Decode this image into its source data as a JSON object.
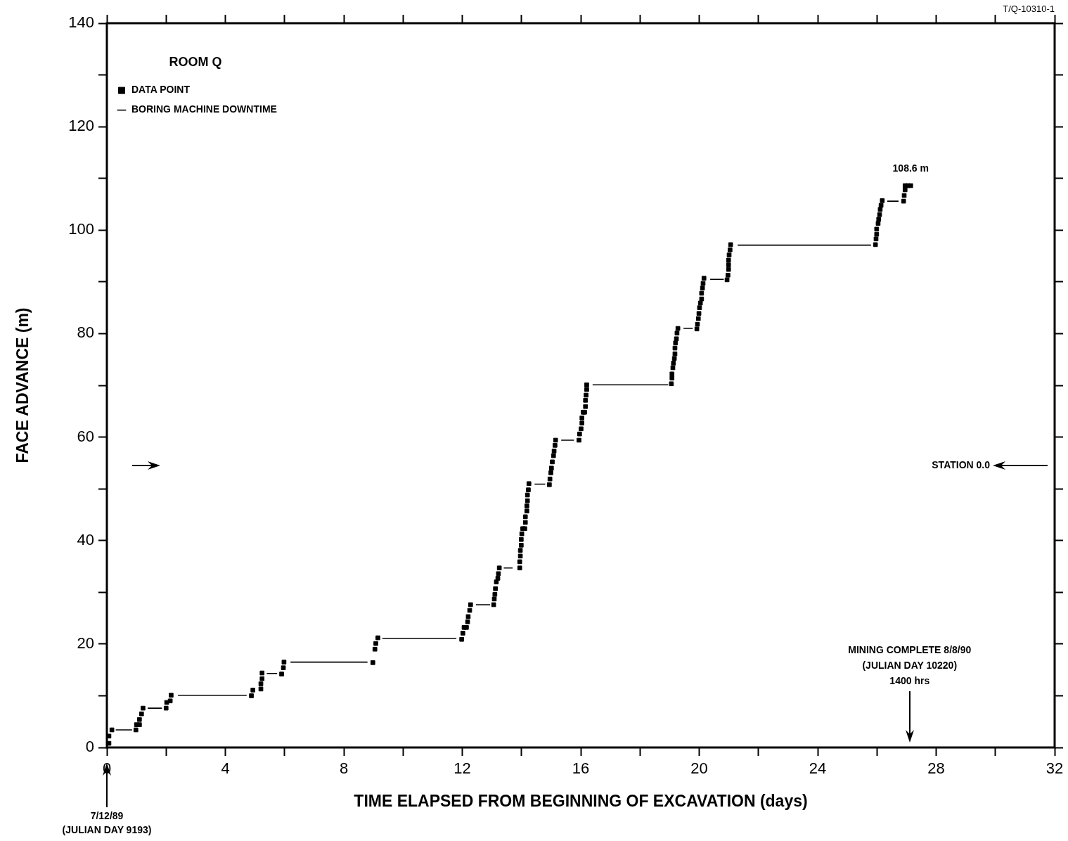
{
  "chart_data": {
    "type": "scatter",
    "xlabel": "TIME ELAPSED FROM BEGINNING OF EXCAVATION (days)",
    "ylabel": "FACE ADVANCE (m)",
    "xlim": [
      0,
      32
    ],
    "ylim": [
      0,
      140
    ],
    "xticks": [
      0,
      {
        "value": 2,
        "label": null
      },
      4,
      {
        "value": 6,
        "label": null
      },
      8,
      {
        "value": 10,
        "label": null
      },
      12,
      {
        "value": 14,
        "label": null
      },
      16,
      {
        "value": 18,
        "label": null
      },
      20,
      {
        "value": 22,
        "label": null
      },
      24,
      {
        "value": 26,
        "label": null
      },
      28,
      {
        "value": 30,
        "label": null
      },
      32
    ],
    "yticks": [
      0,
      {
        "value": 10,
        "label": null
      },
      20,
      {
        "value": 30,
        "label": null
      },
      40,
      {
        "value": 50,
        "label": null
      },
      60,
      {
        "value": 70,
        "label": null
      },
      80,
      {
        "value": 90,
        "label": null
      },
      100,
      {
        "value": 110,
        "label": null
      },
      120,
      {
        "value": 130,
        "label": null
      },
      140
    ],
    "legend": "top left",
    "legend_title": "ROOM Q",
    "series": [
      {
        "name": "DATA POINT",
        "marker": "square",
        "color": "#000000",
        "x": [
          0.07,
          0.07,
          0.17,
          0.98,
          1.0,
          1.1,
          1.1,
          1.17,
          1.22,
          2.0,
          2.02,
          2.14,
          2.17,
          4.88,
          4.93,
          5.2,
          5.2,
          5.24,
          5.24,
          5.9,
          5.96,
          5.98,
          8.98,
          9.05,
          9.08,
          9.15,
          11.98,
          12.02,
          12.06,
          12.14,
          12.18,
          12.2,
          12.25,
          12.28,
          13.06,
          13.08,
          13.1,
          13.12,
          13.15,
          13.2,
          13.22,
          13.25,
          13.94,
          13.94,
          13.96,
          13.96,
          13.99,
          13.99,
          14.01,
          14.04,
          14.11,
          14.13,
          14.13,
          14.18,
          14.18,
          14.2,
          14.2,
          14.23,
          14.25,
          14.94,
          14.96,
          14.99,
          15.01,
          15.04,
          15.08,
          15.1,
          15.13,
          15.15,
          15.94,
          15.96,
          16.01,
          16.04,
          16.04,
          16.08,
          16.13,
          16.16,
          16.16,
          16.18,
          16.2,
          16.2,
          19.06,
          19.08,
          19.08,
          19.11,
          19.13,
          19.16,
          19.18,
          19.18,
          19.2,
          19.23,
          19.25,
          19.28,
          19.92,
          19.94,
          19.97,
          19.99,
          20.01,
          20.04,
          20.08,
          20.08,
          20.11,
          20.13,
          20.16,
          20.94,
          20.97,
          20.99,
          20.99,
          20.99,
          21.01,
          21.04,
          21.06,
          25.95,
          25.97,
          25.99,
          25.99,
          26.04,
          26.06,
          26.09,
          26.11,
          26.14,
          26.18,
          26.9,
          26.92,
          26.95,
          26.95,
          27.04,
          27.14
        ],
        "values": [
          0.8,
          2.2,
          3.4,
          3.4,
          4.4,
          4.4,
          5.4,
          6.5,
          7.6,
          7.6,
          8.7,
          9.0,
          10.1,
          10.0,
          11.1,
          11.3,
          12.3,
          13.3,
          14.4,
          14.2,
          15.4,
          16.5,
          16.4,
          19.0,
          20.1,
          21.2,
          20.9,
          22.1,
          23.2,
          23.2,
          24.3,
          25.3,
          26.5,
          27.6,
          27.6,
          28.7,
          29.6,
          30.7,
          32.0,
          32.7,
          33.6,
          34.7,
          34.7,
          35.9,
          37.0,
          38.1,
          39.1,
          40.2,
          41.3,
          42.3,
          42.3,
          43.5,
          44.6,
          45.7,
          46.7,
          47.7,
          48.8,
          49.8,
          51.0,
          50.8,
          51.9,
          53.1,
          54.0,
          55.2,
          56.4,
          57.3,
          58.4,
          59.4,
          59.4,
          60.6,
          61.6,
          62.7,
          63.7,
          64.8,
          64.8,
          65.9,
          67.1,
          68.1,
          69.2,
          70.1,
          70.3,
          71.4,
          72.2,
          73.4,
          74.3,
          75.2,
          76.1,
          77.2,
          78.2,
          79.0,
          80.1,
          81.0,
          80.9,
          81.8,
          82.9,
          83.9,
          85.0,
          85.9,
          86.7,
          87.8,
          88.8,
          89.7,
          90.7,
          90.4,
          91.3,
          92.4,
          93.3,
          94.2,
          95.2,
          96.2,
          97.2,
          97.2,
          98.3,
          99.2,
          100.2,
          101.3,
          102.1,
          103.0,
          104.0,
          104.8,
          105.7,
          105.6,
          106.7,
          107.8,
          108.6,
          108.6,
          108.6
        ]
      },
      {
        "name": "BORING MACHINE DOWNTIME",
        "type": "line",
        "marker": "none",
        "color": "#000000",
        "x": [
          0.3,
          0.85,
          null,
          1.38,
          1.86,
          null,
          2.4,
          4.72,
          null,
          5.4,
          5.75,
          null,
          6.2,
          8.8,
          null,
          9.3,
          11.8,
          null,
          12.46,
          12.94,
          null,
          13.4,
          13.7,
          null,
          14.44,
          14.8,
          null,
          15.34,
          15.77,
          null,
          16.4,
          18.95,
          null,
          19.47,
          19.78,
          null,
          20.37,
          20.83,
          null,
          21.3,
          25.8,
          null,
          26.35,
          26.73
        ],
        "values": [
          3.4,
          3.4,
          null,
          7.6,
          7.6,
          null,
          10.1,
          10.1,
          null,
          14.3,
          14.3,
          null,
          16.5,
          16.5,
          null,
          21.1,
          21.1,
          null,
          27.6,
          27.6,
          null,
          34.7,
          34.7,
          null,
          50.9,
          50.9,
          null,
          59.4,
          59.4,
          null,
          70.1,
          70.1,
          null,
          81.0,
          81.0,
          null,
          90.5,
          90.5,
          null,
          97.1,
          97.1,
          null,
          105.6,
          105.6
        ]
      }
    ],
    "annotations": [
      "T/Q-10310-1",
      {
        "text": "108.6 m",
        "x": 27.14,
        "y": 108.6
      },
      "STATION 0.0",
      "MINING COMPLETE 8/8/90\n(JULIAN DAY 10220)\n1400 hrs",
      "7/12/89\n(JULIAN DAY 9193)"
    ]
  }
}
